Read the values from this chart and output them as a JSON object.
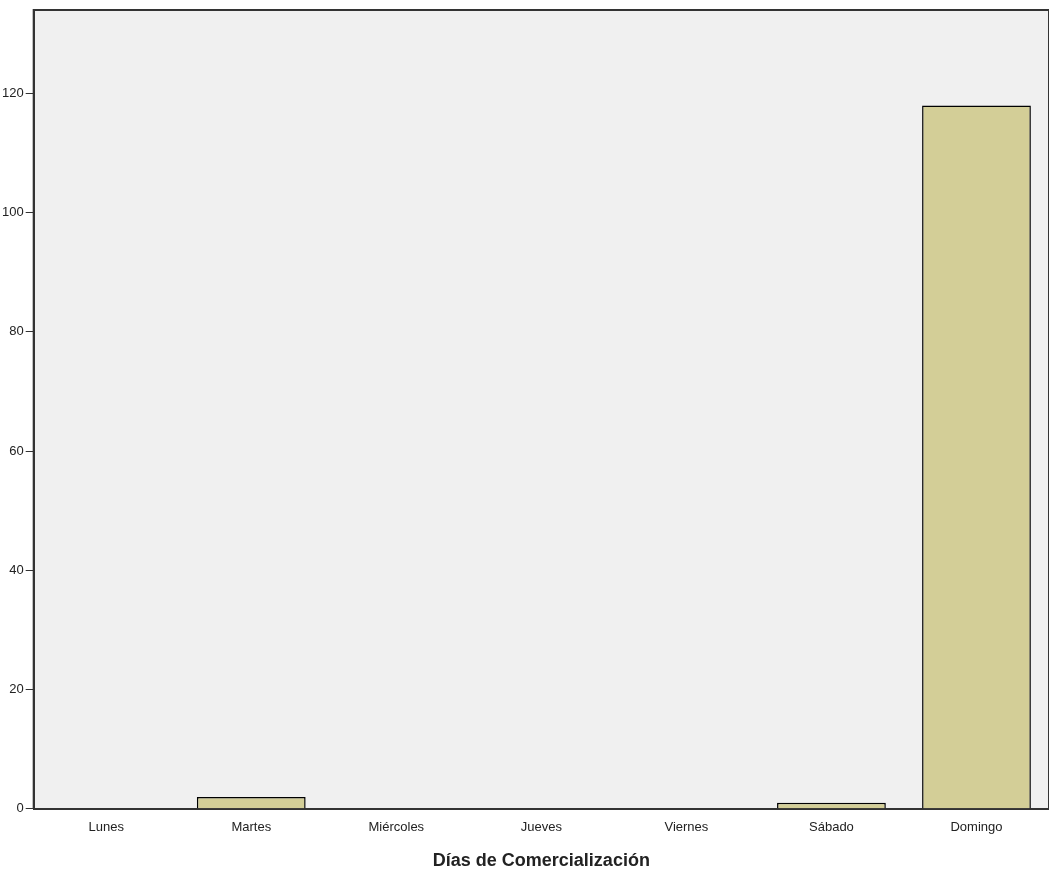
{
  "chart_data": {
    "type": "bar",
    "xlabel": "Días de Comercialización",
    "categories": [
      "Lunes",
      "Martes",
      "Miércoles",
      "Jueves",
      "Viernes",
      "Sábado",
      "Domingo"
    ],
    "values": [
      0,
      2,
      0,
      0,
      0,
      1,
      118
    ],
    "color": "#d3ce97",
    "ylim": [
      0,
      134
    ],
    "yticks": [
      0,
      20,
      40,
      60,
      80,
      100,
      120
    ],
    "grid": false,
    "legend": false
  }
}
